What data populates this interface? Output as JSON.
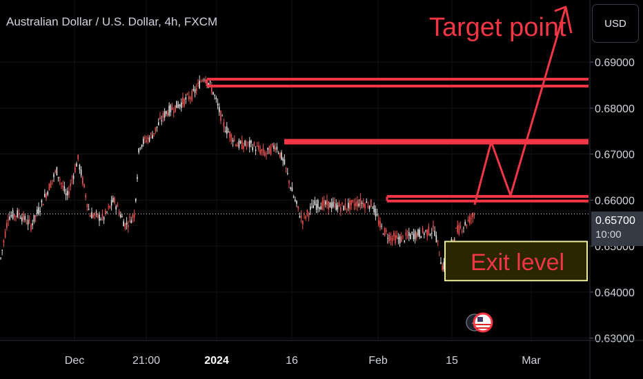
{
  "header": {
    "title": "Australian Dollar / U.S. Dollar, 4h, FXCM"
  },
  "currency_button": {
    "label": "USD"
  },
  "last_price": {
    "price": "0.65700",
    "countdown": "10:00"
  },
  "annotations": {
    "target": "Target point",
    "exit": "Exit level"
  },
  "colors": {
    "background": "#000000",
    "candle": "#ef5350",
    "annotation": "#f23645",
    "exit_box_fill": "#2a2600",
    "exit_box_border": "#ecec9a"
  },
  "chart_data": {
    "type": "candlestick",
    "symbol": "AUDUSD",
    "timeframe": "4h",
    "source": "FXCM",
    "x_ticks": [
      "Dec",
      "21:00",
      "2024",
      "16",
      "Feb",
      "15",
      "Mar"
    ],
    "y_ticks": [
      "0.69000",
      "0.68000",
      "0.67000",
      "0.66000",
      "0.65000",
      "0.64000",
      "0.63000"
    ],
    "ylim": [
      0.6295,
      0.7035
    ],
    "price_path": [
      [
        0,
        0.6465
      ],
      [
        12,
        0.6565
      ],
      [
        28,
        0.657
      ],
      [
        45,
        0.6545
      ],
      [
        60,
        0.659
      ],
      [
        82,
        0.6665
      ],
      [
        97,
        0.6605
      ],
      [
        113,
        0.669
      ],
      [
        130,
        0.657
      ],
      [
        150,
        0.656
      ],
      [
        165,
        0.66
      ],
      [
        182,
        0.6545
      ],
      [
        195,
        0.657
      ],
      [
        202,
        0.672
      ],
      [
        220,
        0.674
      ],
      [
        240,
        0.679
      ],
      [
        262,
        0.681
      ],
      [
        280,
        0.683
      ],
      [
        296,
        0.687
      ],
      [
        308,
        0.684
      ],
      [
        325,
        0.676
      ],
      [
        345,
        0.672
      ],
      [
        365,
        0.672
      ],
      [
        385,
        0.67
      ],
      [
        400,
        0.672
      ],
      [
        412,
        0.668
      ],
      [
        425,
        0.661
      ],
      [
        438,
        0.6555
      ],
      [
        455,
        0.659
      ],
      [
        475,
        0.659
      ],
      [
        500,
        0.6585
      ],
      [
        520,
        0.6595
      ],
      [
        540,
        0.659
      ],
      [
        552,
        0.654
      ],
      [
        565,
        0.652
      ],
      [
        580,
        0.6515
      ],
      [
        600,
        0.6525
      ],
      [
        615,
        0.653
      ],
      [
        630,
        0.6535
      ],
      [
        642,
        0.645
      ],
      [
        660,
        0.653
      ],
      [
        676,
        0.655
      ],
      [
        688,
        0.657
      ]
    ],
    "last_price": 0.657,
    "horizontal_levels": [
      0.6863,
      0.6848,
      0.6727,
      0.6608,
      0.6598
    ],
    "projection_path": [
      [
        688,
        0.659
      ],
      [
        712,
        0.6727
      ],
      [
        740,
        0.661
      ],
      [
        820,
        0.702
      ]
    ],
    "exit_zone": [
      0.6425,
      0.651
    ],
    "series": [
      {
        "name": "AUDUSD 4h",
        "color": "#ef5350"
      }
    ]
  }
}
